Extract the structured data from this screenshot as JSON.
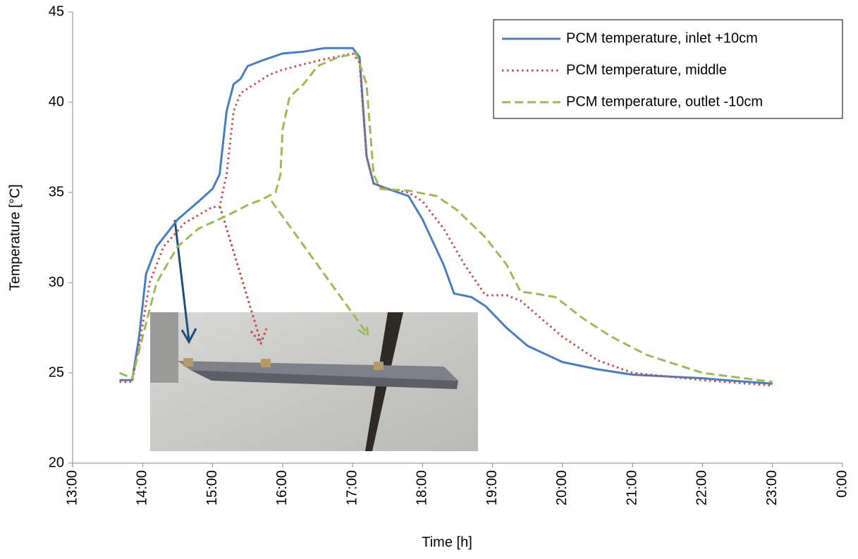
{
  "chart_data": {
    "type": "line",
    "x_label": "Time [h]",
    "y_label": "Temperature [°C]",
    "xlim": [
      13,
      24
    ],
    "ylim": [
      20,
      45
    ],
    "xticks": [
      {
        "value": 13,
        "label": "13:00"
      },
      {
        "value": 14,
        "label": "14:00"
      },
      {
        "value": 15,
        "label": "15:00"
      },
      {
        "value": 16,
        "label": "16:00"
      },
      {
        "value": 17,
        "label": "17:00"
      },
      {
        "value": 18,
        "label": "18:00"
      },
      {
        "value": 19,
        "label": "19:00"
      },
      {
        "value": 20,
        "label": "20:00"
      },
      {
        "value": 21,
        "label": "21:00"
      },
      {
        "value": 22,
        "label": "22:00"
      },
      {
        "value": 23,
        "label": "23:00"
      },
      {
        "value": 24,
        "label": "0:00"
      }
    ],
    "yticks": [
      20,
      25,
      30,
      35,
      40,
      45
    ],
    "legend": "top-right",
    "series": [
      {
        "name": "PCM temperature, inlet +10cm",
        "color": "#4a7ebb",
        "style": "solid",
        "x": [
          13.67,
          13.85,
          13.95,
          14.05,
          14.2,
          14.5,
          14.8,
          15.0,
          15.1,
          15.2,
          15.3,
          15.4,
          15.5,
          15.7,
          16.0,
          16.3,
          16.6,
          17.0,
          17.1,
          17.2,
          17.3,
          17.5,
          17.8,
          18.0,
          18.3,
          18.45,
          18.7,
          18.9,
          19.2,
          19.5,
          20.0,
          20.5,
          21.0,
          22.0,
          23.0
        ],
        "values": [
          24.6,
          24.6,
          27,
          30.5,
          32,
          33.5,
          34.5,
          35.2,
          36,
          39.5,
          41,
          41.3,
          42,
          42.3,
          42.7,
          42.8,
          43,
          43,
          42.5,
          37,
          35.5,
          35.2,
          34.8,
          33.5,
          31,
          29.4,
          29.2,
          28.7,
          27.5,
          26.5,
          25.6,
          25.2,
          24.9,
          24.7,
          24.4
        ]
      },
      {
        "name": "PCM temperature, middle",
        "color": "#c0504d",
        "style": "dotted",
        "x": [
          13.67,
          13.85,
          13.95,
          14.1,
          14.3,
          14.6,
          15.0,
          15.1,
          15.2,
          15.3,
          15.4,
          15.6,
          15.8,
          16.0,
          16.5,
          17.0,
          17.1,
          17.2,
          17.3,
          17.5,
          17.8,
          18.0,
          18.3,
          18.6,
          18.9,
          19.2,
          19.4,
          19.7,
          20.0,
          20.5,
          21.0,
          22.0,
          23.0
        ],
        "values": [
          24.5,
          24.5,
          26.5,
          30,
          32,
          33.3,
          34.2,
          34.2,
          36,
          39.5,
          40.5,
          41,
          41.5,
          41.8,
          42.3,
          42.7,
          42.2,
          37,
          35.5,
          35.2,
          35,
          34.5,
          33,
          31,
          29.3,
          29.3,
          29,
          28,
          27,
          25.7,
          25,
          24.6,
          24.3
        ]
      },
      {
        "name": "PCM temperature, outlet -10cm",
        "color": "#9bbb59",
        "style": "dashed",
        "x": [
          13.67,
          13.85,
          14.0,
          14.2,
          14.5,
          14.8,
          15.2,
          15.5,
          15.7,
          15.9,
          15.97,
          16.0,
          16.1,
          16.3,
          16.5,
          16.8,
          17.05,
          17.2,
          17.3,
          17.4,
          17.8,
          18.2,
          18.5,
          18.9,
          19.2,
          19.4,
          19.6,
          19.9,
          20.3,
          20.7,
          21.2,
          22.0,
          23.0
        ],
        "values": [
          25,
          24.7,
          27,
          30,
          32,
          33,
          33.7,
          34.3,
          34.6,
          35,
          36,
          38.5,
          40.3,
          41,
          42,
          42.5,
          42.7,
          41,
          36,
          35.2,
          35.1,
          34.8,
          34,
          32.5,
          31,
          29.5,
          29.4,
          29.2,
          28,
          27,
          26,
          25,
          24.5
        ]
      }
    ]
  }
}
